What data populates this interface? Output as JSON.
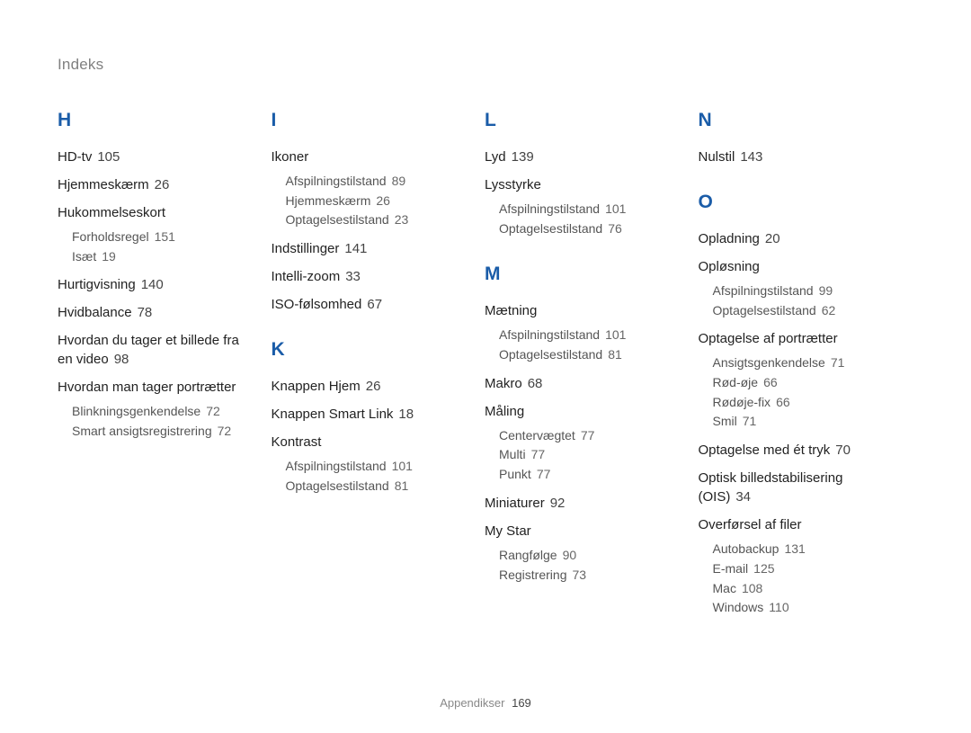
{
  "header": "Indeks",
  "footer": {
    "section": "Appendikser",
    "page": "169"
  },
  "columns": [
    {
      "sections": [
        {
          "letter": "H",
          "entries": [
            {
              "title": "HD-tv",
              "page": "105"
            },
            {
              "title": "Hjemmeskærm",
              "page": "26"
            },
            {
              "title": "Hukommelseskort",
              "subs": [
                {
                  "title": "Forholdsregel",
                  "page": "151"
                },
                {
                  "title": "Isæt",
                  "page": "19"
                }
              ]
            },
            {
              "title": "Hurtigvisning",
              "page": "140"
            },
            {
              "title": "Hvidbalance",
              "page": "78"
            },
            {
              "title": "Hvordan du tager et billede fra en video",
              "page": "98"
            },
            {
              "title": "Hvordan man tager portrætter",
              "subs": [
                {
                  "title": "Blinkningsgenkendelse",
                  "page": "72"
                },
                {
                  "title": "Smart ansigtsregistrering",
                  "page": "72"
                }
              ]
            }
          ]
        }
      ]
    },
    {
      "sections": [
        {
          "letter": "I",
          "entries": [
            {
              "title": "Ikoner",
              "subs": [
                {
                  "title": "Afspilningstilstand",
                  "page": "89"
                },
                {
                  "title": "Hjemmeskærm",
                  "page": "26"
                },
                {
                  "title": "Optagelsestilstand",
                  "page": "23"
                }
              ]
            },
            {
              "title": "Indstillinger",
              "page": "141"
            },
            {
              "title": "Intelli-zoom",
              "page": "33"
            },
            {
              "title": "ISO-følsomhed",
              "page": "67"
            }
          ]
        },
        {
          "letter": "K",
          "entries": [
            {
              "title": "Knappen Hjem",
              "page": "26"
            },
            {
              "title": "Knappen Smart Link",
              "page": "18"
            },
            {
              "title": "Kontrast",
              "subs": [
                {
                  "title": "Afspilningstilstand",
                  "page": "101"
                },
                {
                  "title": "Optagelsestilstand",
                  "page": "81"
                }
              ]
            }
          ]
        }
      ]
    },
    {
      "sections": [
        {
          "letter": "L",
          "entries": [
            {
              "title": "Lyd",
              "page": "139"
            },
            {
              "title": "Lysstyrke",
              "subs": [
                {
                  "title": "Afspilningstilstand",
                  "page": "101"
                },
                {
                  "title": "Optagelsestilstand",
                  "page": "76"
                }
              ]
            }
          ]
        },
        {
          "letter": "M",
          "entries": [
            {
              "title": "Mætning",
              "subs": [
                {
                  "title": "Afspilningstilstand",
                  "page": "101"
                },
                {
                  "title": "Optagelsestilstand",
                  "page": "81"
                }
              ]
            },
            {
              "title": "Makro",
              "page": "68"
            },
            {
              "title": "Måling",
              "subs": [
                {
                  "title": "Centervægtet",
                  "page": "77"
                },
                {
                  "title": "Multi",
                  "page": "77"
                },
                {
                  "title": "Punkt",
                  "page": "77"
                }
              ]
            },
            {
              "title": "Miniaturer",
              "page": "92"
            },
            {
              "title": "My Star",
              "subs": [
                {
                  "title": "Rangfølge",
                  "page": "90"
                },
                {
                  "title": "Registrering",
                  "page": "73"
                }
              ]
            }
          ]
        }
      ]
    },
    {
      "sections": [
        {
          "letter": "N",
          "entries": [
            {
              "title": "Nulstil",
              "page": "143"
            }
          ]
        },
        {
          "letter": "O",
          "entries": [
            {
              "title": "Opladning",
              "page": "20"
            },
            {
              "title": "Opløsning",
              "subs": [
                {
                  "title": "Afspilningstilstand",
                  "page": "99"
                },
                {
                  "title": "Optagelsestilstand",
                  "page": "62"
                }
              ]
            },
            {
              "title": "Optagelse af portrætter",
              "subs": [
                {
                  "title": "Ansigtsgenkendelse",
                  "page": "71"
                },
                {
                  "title": "Rød-øje",
                  "page": "66"
                },
                {
                  "title": "Rødøje-fix",
                  "page": "66"
                },
                {
                  "title": "Smil",
                  "page": "71"
                }
              ]
            },
            {
              "title": "Optagelse med ét tryk",
              "page": "70"
            },
            {
              "title": "Optisk billedstabilisering (OIS)",
              "page": "34"
            },
            {
              "title": "Overførsel af filer",
              "subs": [
                {
                  "title": "Autobackup",
                  "page": "131"
                },
                {
                  "title": "E-mail",
                  "page": "125"
                },
                {
                  "title": "Mac",
                  "page": "108"
                },
                {
                  "title": "Windows",
                  "page": "110"
                }
              ]
            }
          ]
        }
      ]
    }
  ]
}
